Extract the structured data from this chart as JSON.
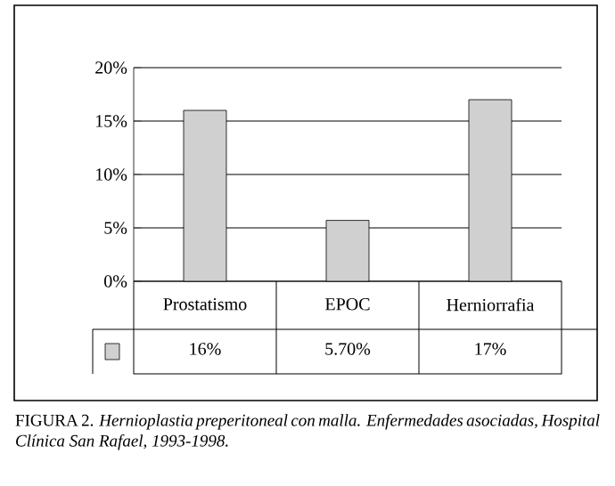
{
  "chart_data": {
    "type": "bar",
    "categories": [
      "Prostatismo",
      "EPOC",
      "Herniorrafia"
    ],
    "values": [
      16,
      5.7,
      17
    ],
    "value_labels": [
      "16%",
      "5.70%",
      "17%"
    ],
    "color": "#d0d0d0",
    "ylim": [
      0,
      20
    ],
    "yticks": [
      {
        "value": 0,
        "label": "0%"
      },
      {
        "value": 5,
        "label": "5%"
      },
      {
        "value": 10,
        "label": "10%"
      },
      {
        "value": 15,
        "label": "15%"
      },
      {
        "value": 20,
        "label": "20%"
      }
    ],
    "grid": "y",
    "annotations": [
      "FIGURA 2. *Hernioplastia preperitoneal con malla. Enfermedades asociadas, Hospital Clínica San Rafael, 1993-1998.*"
    ]
  }
}
